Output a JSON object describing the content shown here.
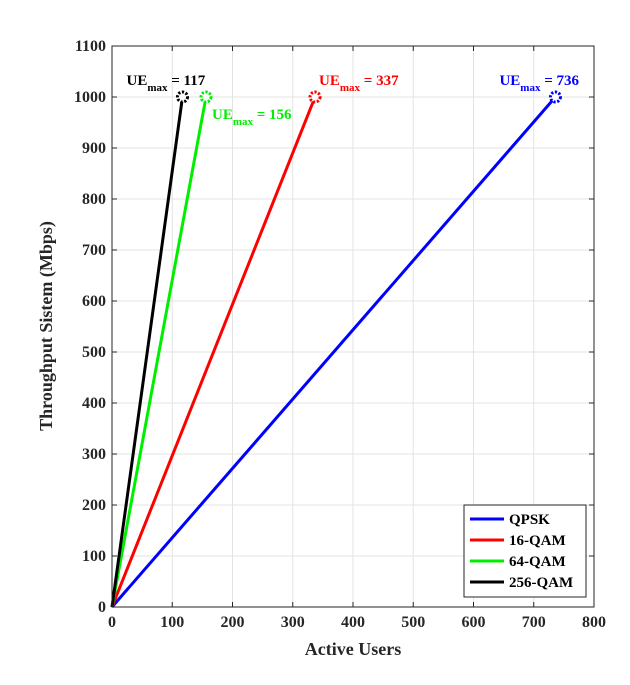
{
  "chart_data": {
    "type": "line",
    "title": "",
    "xlabel": "Active Users",
    "ylabel": "Throughput Sistem (Mbps)",
    "xlim": [
      0,
      800
    ],
    "ylim": [
      0,
      1100
    ],
    "xticks": [
      0,
      100,
      200,
      300,
      400,
      500,
      600,
      700,
      800
    ],
    "yticks": [
      0,
      100,
      200,
      300,
      400,
      500,
      600,
      700,
      800,
      900,
      1000,
      1100
    ],
    "grid": true,
    "legend_position": "bottom-right",
    "series": [
      {
        "name": "QPSK",
        "color": "#0000ff",
        "x": [
          0,
          736
        ],
        "y": [
          0,
          1000
        ],
        "annotation": {
          "base": "UE",
          "sub": "max",
          "text": " = 736"
        }
      },
      {
        "name": "16-QAM",
        "color": "#ff0000",
        "x": [
          0,
          337
        ],
        "y": [
          0,
          1000
        ],
        "annotation": {
          "base": "UE",
          "sub": "max",
          "text": " = 337"
        }
      },
      {
        "name": "64-QAM",
        "color": "#00ee00",
        "x": [
          0,
          156
        ],
        "y": [
          0,
          1000
        ],
        "annotation": {
          "base": "UE",
          "sub": "max",
          "text": " = 156"
        }
      },
      {
        "name": "256-QAM",
        "color": "#000000",
        "x": [
          0,
          117
        ],
        "y": [
          0,
          1000
        ],
        "annotation": {
          "base": "UE",
          "sub": "max",
          "text": " = 117"
        }
      }
    ]
  }
}
